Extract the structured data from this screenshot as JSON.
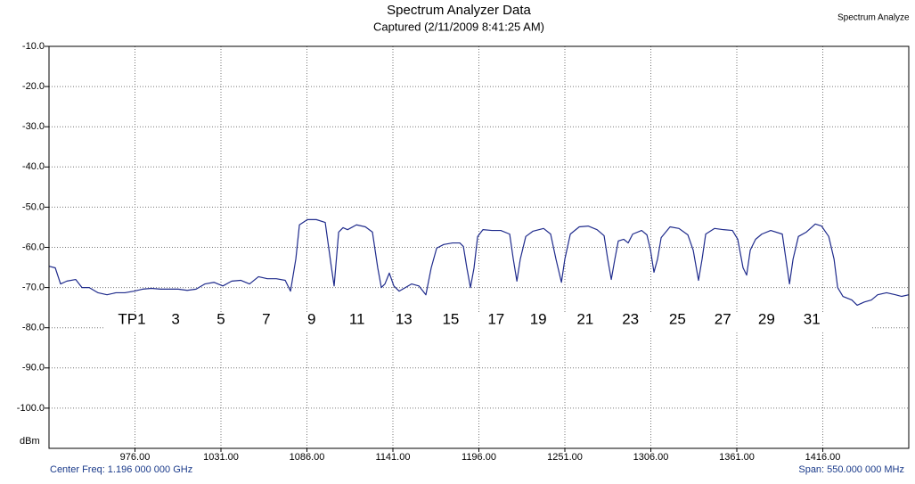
{
  "chart_data": {
    "type": "line",
    "title": "Spectrum Analyzer Data",
    "subtitle": "Captured (2/11/2009 8:41:25 AM)",
    "legend_label": "Spectrum Analyze",
    "y_label": "dBm",
    "center_freq_label": "Center Freq: 1.196 000 000 GHz",
    "span_label": "Span: 550.000 000 MHz",
    "color": "#1f2b8c",
    "grid": true,
    "xlim": [
      921,
      1471
    ],
    "ylim": [
      -110,
      -10
    ],
    "xticks": [
      {
        "value": 976,
        "label": "976.00"
      },
      {
        "value": 1031,
        "label": "1031.00"
      },
      {
        "value": 1086,
        "label": "1086.00"
      },
      {
        "value": 1141,
        "label": "1141.00"
      },
      {
        "value": 1196,
        "label": "1196.00"
      },
      {
        "value": 1251,
        "label": "1251.00"
      },
      {
        "value": 1306,
        "label": "1306.00"
      },
      {
        "value": 1361,
        "label": "1361.00"
      },
      {
        "value": 1416,
        "label": "1416.00"
      }
    ],
    "yticks": [
      {
        "value": -10,
        "label": "-10.0"
      },
      {
        "value": -20,
        "label": "-20.0"
      },
      {
        "value": -30,
        "label": "-30.0"
      },
      {
        "value": -40,
        "label": "-40.0"
      },
      {
        "value": -50,
        "label": "-50.0"
      },
      {
        "value": -60,
        "label": "-60.0"
      },
      {
        "value": -70,
        "label": "-70.0"
      },
      {
        "value": -80,
        "label": "-80.0"
      },
      {
        "value": -90,
        "label": "-90.0"
      },
      {
        "value": -100,
        "label": "-100.0"
      }
    ],
    "annotations": [
      {
        "text": "TP1",
        "x": 974
      },
      {
        "text": "3",
        "x": 1002
      },
      {
        "text": "5",
        "x": 1031
      },
      {
        "text": "7",
        "x": 1060
      },
      {
        "text": "9",
        "x": 1089
      },
      {
        "text": "11",
        "x": 1118
      },
      {
        "text": "13",
        "x": 1148
      },
      {
        "text": "15",
        "x": 1178
      },
      {
        "text": "17",
        "x": 1207
      },
      {
        "text": "19",
        "x": 1234
      },
      {
        "text": "21",
        "x": 1264
      },
      {
        "text": "23",
        "x": 1293
      },
      {
        "text": "25",
        "x": 1323
      },
      {
        "text": "27",
        "x": 1352
      },
      {
        "text": "29",
        "x": 1380
      },
      {
        "text": "31",
        "x": 1409
      }
    ],
    "x": [
      921,
      925,
      928.4,
      932.4,
      938.1,
      942.1,
      946.7,
      952.4,
      958.1,
      963.8,
      969.5,
      975.2,
      980.9,
      986.6,
      992.3,
      998,
      1003.7,
      1009.4,
      1015.1,
      1020.8,
      1026.5,
      1032.2,
      1037.9,
      1043.6,
      1049.3,
      1055,
      1060.7,
      1066.4,
      1072.1,
      1075.5,
      1078.9,
      1081.2,
      1086.3,
      1092,
      1097.7,
      1101.7,
      1103.4,
      1106.3,
      1109.1,
      1112,
      1117.7,
      1123.4,
      1127.9,
      1131.3,
      1133.6,
      1135.9,
      1138.7,
      1141.6,
      1145,
      1149,
      1153,
      1157.6,
      1162.1,
      1165.5,
      1169,
      1173.5,
      1179.2,
      1183.8,
      1186.1,
      1188.3,
      1190.6,
      1192.9,
      1195.2,
      1198.6,
      1204.3,
      1210,
      1215.7,
      1218,
      1220.3,
      1222.5,
      1226,
      1230.5,
      1237.4,
      1241.9,
      1245.3,
      1248.8,
      1251,
      1254.5,
      1260.2,
      1265.9,
      1271.6,
      1276.1,
      1278.4,
      1280.7,
      1283,
      1285.2,
      1288.7,
      1291.5,
      1294.4,
      1300.1,
      1303.5,
      1305.8,
      1308,
      1310.3,
      1312.6,
      1318.3,
      1324,
      1329.7,
      1333.1,
      1336.5,
      1338.8,
      1341.1,
      1346.8,
      1352.5,
      1358.2,
      1361.6,
      1365,
      1367.3,
      1369.6,
      1373,
      1377,
      1382.7,
      1390.1,
      1392.4,
      1394.7,
      1397,
      1400.4,
      1405.5,
      1411.2,
      1415.2,
      1419.8,
      1423.2,
      1425.5,
      1428.9,
      1434.6,
      1438,
      1442.6,
      1447.1,
      1451.1,
      1456.8,
      1462.5,
      1466.5,
      1471
    ],
    "values": [
      -64.7,
      -65.1,
      -69.1,
      -68.4,
      -68,
      -70,
      -70,
      -71.3,
      -71.8,
      -71.3,
      -71.3,
      -70.9,
      -70.4,
      -70.2,
      -70.4,
      -70.4,
      -70.4,
      -70.7,
      -70.4,
      -69.1,
      -68.7,
      -69.6,
      -68.4,
      -68.2,
      -69.1,
      -67.3,
      -67.8,
      -67.8,
      -68.2,
      -70.9,
      -62.9,
      -54.4,
      -53.1,
      -53.1,
      -53.8,
      -65.1,
      -69.6,
      -56.2,
      -55.1,
      -55.6,
      -54.4,
      -54.9,
      -56.2,
      -65.1,
      -70,
      -69.1,
      -66.4,
      -69.6,
      -70.9,
      -70,
      -69.1,
      -69.6,
      -71.8,
      -65.1,
      -60.2,
      -59.3,
      -58.9,
      -58.9,
      -59.8,
      -65.1,
      -70,
      -65.1,
      -57.3,
      -55.6,
      -55.8,
      -55.8,
      -56.7,
      -62.9,
      -68.4,
      -62.9,
      -57.3,
      -56,
      -55.3,
      -56.7,
      -62.9,
      -68.7,
      -62.9,
      -56.7,
      -54.9,
      -54.7,
      -55.6,
      -57.1,
      -62.9,
      -68,
      -62.9,
      -58.4,
      -58,
      -58.9,
      -56.7,
      -55.8,
      -56.9,
      -60.7,
      -66.2,
      -62.9,
      -57.6,
      -54.9,
      -55.3,
      -56.9,
      -60.7,
      -68.2,
      -62.9,
      -56.7,
      -55.3,
      -55.6,
      -55.8,
      -58,
      -65.1,
      -66.9,
      -60.7,
      -58,
      -56.7,
      -55.8,
      -56.7,
      -62.9,
      -69.1,
      -62.9,
      -57.3,
      -56.2,
      -54.2,
      -54.7,
      -57.3,
      -62.9,
      -70,
      -72.2,
      -73.1,
      -74.4,
      -73.6,
      -73.1,
      -71.8,
      -71.3,
      -71.8,
      -72.2,
      -71.8
    ]
  }
}
